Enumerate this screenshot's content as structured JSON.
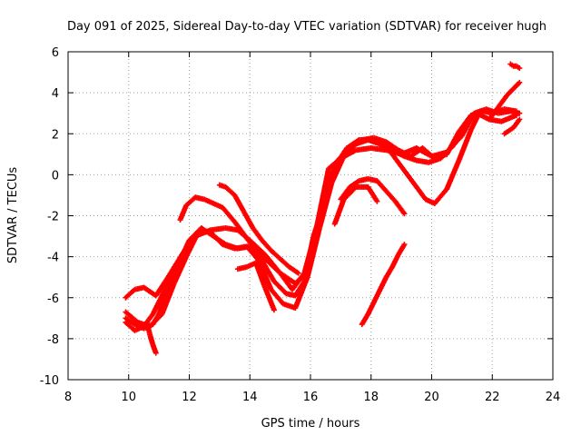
{
  "chart_data": {
    "type": "scatter",
    "title": "Day 091 of 2025, Sidereal Day-to-day VTEC variation (SDTVAR) for receiver hugh",
    "xlabel": "GPS time / hours",
    "ylabel": "SDTVAR / TECUs",
    "xlim": [
      8,
      24
    ],
    "ylim": [
      -10,
      6
    ],
    "xticks": [
      "8",
      "10",
      "12",
      "14",
      "16",
      "18",
      "20",
      "22",
      "24"
    ],
    "yticks": [
      "-10",
      "-8",
      "-6",
      "-4",
      "-2",
      "0",
      "2",
      "4",
      "6"
    ],
    "grid": true,
    "marker": "+",
    "color": "#ff0000",
    "series": [
      {
        "x": [
          9.9,
          10.2,
          10.5,
          10.9,
          11.3,
          11.8,
          12.2,
          12.7,
          13.2,
          13.6,
          14.0,
          14.5,
          15.0,
          15.4,
          15.8,
          16.2,
          16.6,
          17.0,
          17.5,
          18.0,
          18.5,
          19.0,
          19.5,
          20.0,
          20.5,
          21.0,
          21.4,
          21.8,
          22.2,
          22.6,
          22.9
        ],
        "y": [
          -6.0,
          -5.6,
          -5.5,
          -5.9,
          -5.0,
          -3.8,
          -3.0,
          -2.7,
          -2.6,
          -2.7,
          -3.2,
          -3.9,
          -4.8,
          -5.6,
          -4.8,
          -2.6,
          0.3,
          0.8,
          1.2,
          1.3,
          1.2,
          1.0,
          1.3,
          0.9,
          1.1,
          1.9,
          3.0,
          3.2,
          3.0,
          3.1,
          3.0
        ]
      },
      {
        "x": [
          9.9,
          10.2,
          10.5,
          10.8,
          11.2,
          11.6,
          12.0,
          12.4,
          12.8,
          13.2,
          13.6,
          14.0,
          14.4,
          14.8,
          15.2,
          15.5,
          15.8,
          16.1,
          16.5,
          16.9,
          17.3,
          17.7,
          18.1,
          18.5,
          18.9,
          19.3,
          19.7,
          20.1,
          20.5,
          20.9,
          21.3,
          21.7,
          22.0,
          22.4,
          22.8
        ],
        "y": [
          -7.2,
          -7.6,
          -7.4,
          -6.8,
          -5.6,
          -4.5,
          -3.2,
          -2.6,
          -3.0,
          -3.4,
          -3.6,
          -3.5,
          -4.2,
          -5.2,
          -5.8,
          -5.9,
          -5.2,
          -3.0,
          -1.2,
          0.7,
          1.3,
          1.7,
          1.8,
          1.6,
          1.2,
          0.9,
          1.3,
          0.8,
          1.0,
          2.1,
          2.9,
          3.1,
          3.0,
          3.2,
          3.1
        ]
      },
      {
        "x": [
          9.9,
          10.3,
          10.7,
          11.1,
          11.5,
          11.9,
          12.3,
          12.7,
          13.1,
          13.5,
          13.9,
          14.3,
          14.7,
          15.1,
          15.5,
          15.9,
          16.3,
          16.7,
          17.1,
          17.5,
          17.9,
          18.3,
          18.7,
          19.1,
          19.5,
          19.9,
          20.3,
          20.7,
          21.1,
          21.5,
          21.9,
          22.3,
          22.8
        ],
        "y": [
          -6.7,
          -7.2,
          -7.4,
          -6.8,
          -5.3,
          -4.0,
          -2.8,
          -2.8,
          -3.4,
          -3.6,
          -3.5,
          -4.2,
          -5.6,
          -6.3,
          -6.5,
          -5.0,
          -2.6,
          -0.4,
          0.9,
          1.5,
          1.7,
          1.5,
          1.2,
          0.9,
          0.7,
          0.6,
          0.8,
          1.4,
          2.4,
          3.0,
          2.7,
          2.6,
          2.9
        ]
      },
      {
        "x": [
          9.9,
          10.2,
          10.5,
          10.8,
          11.0,
          11.2,
          11.5,
          11.8,
          12.0
        ],
        "y": [
          -7.0,
          -7.3,
          -7.5,
          -7.3,
          -6.8,
          -6.0,
          -5.0,
          -4.0,
          -3.5
        ]
      },
      {
        "x": [
          10.6,
          10.7,
          10.8,
          10.9
        ],
        "y": [
          -7.2,
          -7.8,
          -8.3,
          -8.7
        ]
      },
      {
        "x": [
          11.7,
          11.9,
          12.2,
          12.5,
          12.8,
          13.1,
          13.5,
          14.0,
          14.5,
          15.0,
          15.5,
          15.8,
          16.0,
          16.4,
          16.8,
          17.2,
          17.6,
          18.0,
          18.5,
          19.0,
          19.5,
          19.8,
          20.1,
          20.5,
          20.9,
          21.3,
          21.6
        ],
        "y": [
          -2.2,
          -1.5,
          -1.1,
          -1.2,
          -1.4,
          -1.6,
          -2.3,
          -3.3,
          -4.1,
          -4.8,
          -5.3,
          -4.9,
          -4.0,
          -1.7,
          0.4,
          1.3,
          1.7,
          1.7,
          1.4,
          0.4,
          -0.6,
          -1.2,
          -1.4,
          -0.7,
          0.7,
          2.2,
          3.1
        ]
      },
      {
        "x": [
          13.0,
          13.2,
          13.5,
          13.8,
          14.1,
          14.4,
          14.7,
          15.0,
          15.3,
          15.6
        ],
        "y": [
          -0.5,
          -0.6,
          -1.0,
          -1.8,
          -2.6,
          -3.2,
          -3.7,
          -4.1,
          -4.5,
          -4.8
        ]
      },
      {
        "x": [
          13.6,
          13.9,
          14.2,
          14.5,
          14.8
        ],
        "y": [
          -4.6,
          -4.5,
          -4.3,
          -5.5,
          -6.6
        ]
      },
      {
        "x": [
          17.0,
          17.3,
          17.6,
          17.9,
          18.2,
          18.5,
          18.8,
          19.1
        ],
        "y": [
          -1.2,
          -0.6,
          -0.3,
          -0.2,
          -0.3,
          -0.8,
          -1.3,
          -1.9
        ]
      },
      {
        "x": [
          16.8,
          17.1,
          17.5,
          17.9,
          18.2
        ],
        "y": [
          -2.4,
          -1.2,
          -0.6,
          -0.6,
          -1.3
        ]
      },
      {
        "x": [
          17.7,
          17.9,
          18.1,
          18.3,
          18.5,
          18.7,
          18.9,
          19.1
        ],
        "y": [
          -7.3,
          -6.8,
          -6.2,
          -5.6,
          -5.0,
          -4.5,
          -3.9,
          -3.4
        ]
      },
      {
        "x": [
          21.9,
          22.1,
          22.3,
          22.5,
          22.7,
          22.9
        ],
        "y": [
          2.7,
          3.1,
          3.5,
          3.9,
          4.2,
          4.5
        ]
      },
      {
        "x": [
          22.4,
          22.5,
          22.6,
          22.7,
          22.8,
          22.9
        ],
        "y": [
          2.0,
          2.1,
          2.2,
          2.3,
          2.5,
          2.7
        ]
      },
      {
        "x": [
          22.6,
          22.7,
          22.8,
          22.9
        ],
        "y": [
          5.4,
          5.3,
          5.3,
          5.2
        ]
      }
    ]
  }
}
